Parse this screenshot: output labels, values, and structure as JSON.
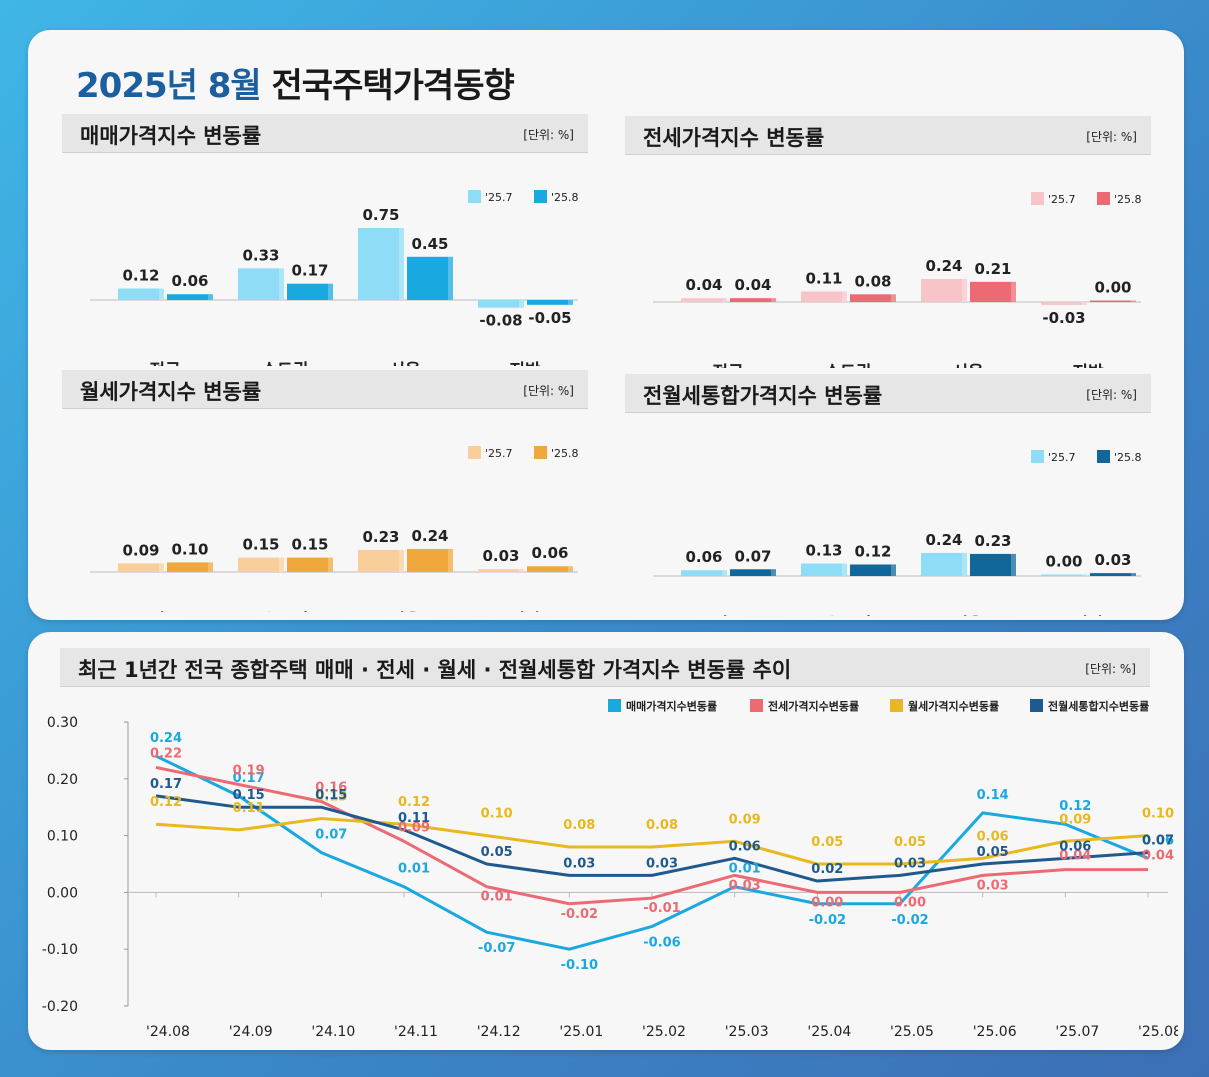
{
  "title": {
    "year_month": "2025년 8월",
    "rest": "전국주택가격동향"
  },
  "panels": [
    {
      "id": "sale",
      "title": "매매가격지수 변동률",
      "unit": "[단위: %]",
      "legend": [
        "'25.7",
        "'25.8"
      ],
      "colors": [
        "#8fdcf6",
        "#1aa8e0"
      ],
      "chart_data": {
        "type": "bar",
        "categories": [
          "전국",
          "수도권",
          "서울",
          "지방"
        ],
        "series": [
          {
            "name": "'25.7",
            "values": [
              0.12,
              0.33,
              0.75,
              -0.08
            ]
          },
          {
            "name": "'25.8",
            "values": [
              0.06,
              0.17,
              0.45,
              -0.05
            ]
          }
        ]
      }
    },
    {
      "id": "jeonse",
      "title": "전세가격지수 변동률",
      "unit": "[단위: %]",
      "legend": [
        "'25.7",
        "'25.8"
      ],
      "colors": [
        "#f7c5c8",
        "#ec6a74"
      ],
      "chart_data": {
        "type": "bar",
        "categories": [
          "전국",
          "수도권",
          "서울",
          "지방"
        ],
        "series": [
          {
            "name": "'25.7",
            "values": [
              0.04,
              0.11,
              0.24,
              -0.03
            ]
          },
          {
            "name": "'25.8",
            "values": [
              0.04,
              0.08,
              0.21,
              0.0
            ]
          }
        ]
      }
    },
    {
      "id": "wolse",
      "title": "월세가격지수 변동률",
      "unit": "[단위: %]",
      "legend": [
        "'25.7",
        "'25.8"
      ],
      "colors": [
        "#f8cf9a",
        "#f0a83c"
      ],
      "chart_data": {
        "type": "bar",
        "categories": [
          "전국",
          "수도권",
          "서울",
          "지방"
        ],
        "series": [
          {
            "name": "'25.7",
            "values": [
              0.09,
              0.15,
              0.23,
              0.03
            ]
          },
          {
            "name": "'25.8",
            "values": [
              0.1,
              0.15,
              0.24,
              0.06
            ]
          }
        ]
      }
    },
    {
      "id": "combined",
      "title": "전월세통합가격지수 변동률",
      "unit": "[단위: %]",
      "legend": [
        "'25.7",
        "'25.8"
      ],
      "colors": [
        "#8fdcf6",
        "#11679a"
      ],
      "chart_data": {
        "type": "bar",
        "categories": [
          "전국",
          "수도권",
          "서울",
          "지방"
        ],
        "series": [
          {
            "name": "'25.7",
            "values": [
              0.06,
              0.13,
              0.24,
              0.0
            ]
          },
          {
            "name": "'25.8",
            "values": [
              0.07,
              0.12,
              0.23,
              0.03
            ]
          }
        ]
      }
    }
  ],
  "trend": {
    "title": "최근 1년간 전국 종합주택 매매 · 전세 · 월세 · 전월세통합 가격지수 변동률 추이",
    "unit": "[단위: %]",
    "chart_data": {
      "type": "line",
      "x": [
        "'24.08",
        "'24.09",
        "'24.10",
        "'24.11",
        "'24.12",
        "'25.01",
        "'25.02",
        "'25.03",
        "'25.04",
        "'25.05",
        "'25.06",
        "'25.07",
        "'25.08"
      ],
      "ylim": [
        -0.2,
        0.3
      ],
      "yticks": [
        "0.30",
        "0.20",
        "0.10",
        "0.00",
        "-0.10",
        "-0.20"
      ],
      "series": [
        {
          "name": "매매가격지수변동률",
          "color": "#1aa8e0",
          "values": [
            0.24,
            0.17,
            0.07,
            0.01,
            -0.07,
            -0.1,
            -0.06,
            0.01,
            -0.02,
            -0.02,
            0.14,
            0.12,
            0.06
          ]
        },
        {
          "name": "전세가격지수변동률",
          "color": "#ec6a74",
          "values": [
            0.22,
            0.19,
            0.16,
            0.09,
            0.01,
            -0.02,
            -0.01,
            0.03,
            0.0,
            0.0,
            0.03,
            0.04,
            0.04
          ]
        },
        {
          "name": "월세가격지수변동률",
          "color": "#e8b820",
          "values": [
            0.12,
            0.11,
            0.13,
            0.12,
            0.1,
            0.08,
            0.08,
            0.09,
            0.05,
            0.05,
            0.06,
            0.09,
            0.1
          ]
        },
        {
          "name": "전월세통합지수변동률",
          "color": "#1f5a8e",
          "values": [
            0.17,
            0.15,
            0.15,
            0.11,
            0.05,
            0.03,
            0.03,
            0.06,
            0.02,
            0.03,
            0.05,
            0.06,
            0.07
          ]
        }
      ]
    }
  }
}
